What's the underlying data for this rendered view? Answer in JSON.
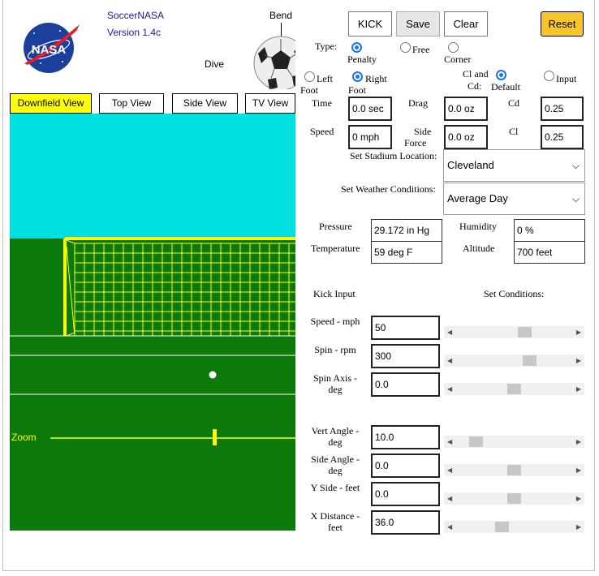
{
  "app": {
    "name": "SoccerNASA",
    "version": "Version 1.4c"
  },
  "logo": {
    "text": "NASA"
  },
  "ball_labels": {
    "bend": "Bend",
    "dive": "Dive"
  },
  "view_tabs": [
    {
      "label": "Downfield View",
      "active": true
    },
    {
      "label": "Top View",
      "active": false
    },
    {
      "label": "Side View",
      "active": false
    },
    {
      "label": "TV View",
      "active": false
    }
  ],
  "field": {
    "zoom_label": "Zoom",
    "sky_color": "#00e0e0",
    "grass_color": "#0b7a0b",
    "goal_color": "#ffff00"
  },
  "buttons": {
    "kick": "KICK",
    "save": "Save",
    "clear": "Clear",
    "reset": "Reset"
  },
  "kick_type": {
    "label": "Type:",
    "options": [
      {
        "label": "Penalty",
        "checked": true
      },
      {
        "label": "Free",
        "checked": false
      },
      {
        "label": "Corner",
        "checked": false
      }
    ]
  },
  "foot": {
    "options": [
      {
        "label_line1": "Left",
        "label_line2": "Foot",
        "checked": false
      },
      {
        "label_line1": "Right",
        "label_line2": "Foot",
        "checked": true
      }
    ]
  },
  "cl_cd": {
    "label_line1": "Cl and",
    "label_line2": "Cd:",
    "options": [
      {
        "label": "Default",
        "checked": true
      },
      {
        "label": "Input",
        "checked": false
      }
    ]
  },
  "outputs": {
    "time": {
      "label": "Time",
      "value": "0.0 sec"
    },
    "speed": {
      "label": "Speed",
      "value": "0 mph"
    },
    "drag": {
      "label": "Drag",
      "value": "0.0 oz"
    },
    "side_force": {
      "label_line1": "Side",
      "label_line2": "Force",
      "value": "0.0 oz"
    },
    "cd": {
      "label": "Cd",
      "value": "0.25"
    },
    "cl": {
      "label": "Cl",
      "value": "0.25"
    }
  },
  "stadium": {
    "label": "Set Stadium Location:",
    "selected": "Cleveland"
  },
  "weather": {
    "label": "Set Weather Conditions:",
    "selected": "Average Day"
  },
  "atmosphere": {
    "pressure": {
      "label": "Pressure",
      "value": "29.172 in Hg"
    },
    "temperature": {
      "label": "Temperature",
      "value": "59 deg F"
    },
    "humidity": {
      "label": "Humidity",
      "value": "0 %"
    },
    "altitude": {
      "label": "Altitude",
      "value": "700 feet"
    }
  },
  "section_labels": {
    "kick_input": "Kick Input",
    "set_conditions": "Set Conditions:"
  },
  "inputs": [
    {
      "label_line1": "Speed - mph",
      "label_line2": "",
      "value": "50",
      "slider_fraction": 0.6
    },
    {
      "label_line1": "Spin - rpm",
      "label_line2": "",
      "value": "300",
      "slider_fraction": 0.65
    },
    {
      "label_line1": "Spin Axis -",
      "label_line2": "deg",
      "value": "0.0",
      "slider_fraction": 0.5
    },
    {
      "label_line1": "Vert Angle -",
      "label_line2": "deg",
      "value": "10.0",
      "slider_fraction": 0.13
    },
    {
      "label_line1": "Side Angle -",
      "label_line2": "deg",
      "value": "0.0",
      "slider_fraction": 0.5
    },
    {
      "label_line1": "Y Side - feet",
      "label_line2": "",
      "value": "0.0",
      "slider_fraction": 0.5
    },
    {
      "label_line1": "X Distance -",
      "label_line2": "feet",
      "value": "36.0",
      "slider_fraction": 0.38
    }
  ]
}
